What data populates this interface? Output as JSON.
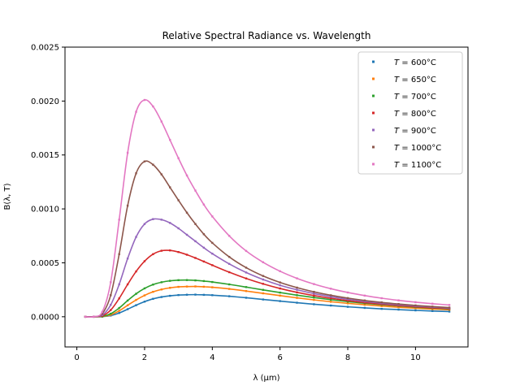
{
  "chart_data": {
    "type": "line",
    "title": "Relative Spectral Radiance vs. Wavelength",
    "xlabel": "λ (μm)",
    "ylabel": "B(λ, T)",
    "xlim": [
      -0.35,
      11.55
    ],
    "ylim": [
      -0.00028,
      0.0025
    ],
    "xticks": [
      0,
      2,
      4,
      6,
      8,
      10
    ],
    "xtick_labels": [
      "0",
      "2",
      "4",
      "6",
      "8",
      "10"
    ],
    "yticks": [
      0.0,
      0.0005,
      0.001,
      0.0015,
      0.002,
      0.0025
    ],
    "ytick_labels": [
      "0.0000",
      "0.0005",
      "0.0010",
      "0.0015",
      "0.0020",
      "0.0025"
    ],
    "grid": false,
    "legend_position": "top-right",
    "x": [
      0.25,
      0.5,
      0.75,
      1.0,
      1.25,
      1.5,
      1.75,
      2.0,
      2.25,
      2.5,
      2.75,
      3.0,
      3.25,
      3.5,
      3.75,
      4.0,
      4.5,
      5.0,
      5.5,
      6.0,
      6.5,
      7.0,
      7.5,
      8.0,
      8.5,
      9.0,
      9.5,
      10.0,
      10.5,
      11.0
    ],
    "series": [
      {
        "name": "T = 600°C",
        "label_prefix": "T",
        "label_value": " = 600°C",
        "color": "#1f77b4",
        "values": [
          0.0,
          0.0,
          1e-06,
          1.1e-05,
          3.5e-05,
          7e-05,
          0.000107,
          0.00014,
          0.000166,
          0.000183,
          0.000194,
          0.000201,
          0.000204,
          0.000205,
          0.000203,
          0.0002,
          0.00019,
          0.000176,
          0.00016,
          0.000145,
          0.00013,
          0.000116,
          0.000104,
          9.2e-05,
          8.2e-05,
          7.3e-05,
          6.6e-05,
          5.9e-05,
          5.3e-05,
          4.8e-05
        ]
      },
      {
        "name": "T = 650°C",
        "label_prefix": "T",
        "label_value": " = 650°C",
        "color": "#ff7f0e",
        "values": [
          0.0,
          0.0,
          2e-06,
          1.8e-05,
          5.5e-05,
          0.000106,
          0.000156,
          0.000198,
          0.000231,
          0.000253,
          0.000268,
          0.000277,
          0.00028,
          0.000281,
          0.000278,
          0.000273,
          0.000258,
          0.000238,
          0.000217,
          0.000196,
          0.000175,
          0.000156,
          0.000139,
          0.000124,
          0.000111,
          9.9e-05,
          8.8e-05,
          7.9e-05,
          7.1e-05,
          6.4e-05
        ]
      },
      {
        "name": "T = 700°C",
        "label_prefix": "T",
        "label_value": " = 700°C",
        "color": "#2ca02c",
        "values": [
          0.0,
          0.0,
          3e-06,
          2.8e-05,
          8.1e-05,
          0.00015,
          0.000213,
          0.000263,
          0.000298,
          0.00032,
          0.000333,
          0.000339,
          0.00034,
          0.000337,
          0.000331,
          0.000322,
          0.0003,
          0.000275,
          0.000249,
          0.000224,
          0.0002,
          0.000178,
          0.000158,
          0.00014,
          0.000125,
          0.000112,
          0.0001,
          8.9e-05,
          8e-05,
          7.2e-05
        ]
      },
      {
        "name": "T = 800°C",
        "label_prefix": "T",
        "label_value": " = 800°C",
        "color": "#d62728",
        "values": [
          0.0,
          0.0,
          8e-06,
          6.2e-05,
          0.00017,
          0.0003,
          0.00042,
          0.000515,
          0.00058,
          0.000612,
          0.000615,
          0.0006,
          0.000575,
          0.000545,
          0.000512,
          0.000478,
          0.000413,
          0.000355,
          0.000305,
          0.000262,
          0.000226,
          0.000196,
          0.000171,
          0.00015,
          0.000132,
          0.000117,
          0.000104,
          9.3e-05,
          8.3e-05,
          7.5e-05
        ]
      },
      {
        "name": "T = 900°C",
        "label_prefix": "T",
        "label_value": " = 900°C",
        "color": "#9467bd",
        "values": [
          0.0,
          0.0,
          1.5e-05,
          0.00011,
          0.0003,
          0.00054,
          0.00074,
          0.00086,
          0.000905,
          0.0009,
          0.00087,
          0.00082,
          0.00076,
          0.0007,
          0.00064,
          0.000585,
          0.00049,
          0.00041,
          0.000345,
          0.000292,
          0.00025,
          0.000215,
          0.000186,
          0.000162,
          0.000142,
          0.000125,
          0.000111,
          9.9e-05,
          8.9e-05,
          8e-05
        ]
      },
      {
        "name": "T = 1000°C",
        "label_prefix": "T",
        "label_value": " = 1000°C",
        "color": "#8c564b",
        "values": [
          0.0,
          0.0,
          2.8e-05,
          0.0002,
          0.00058,
          0.00103,
          0.00133,
          0.00144,
          0.00141,
          0.00132,
          0.0012,
          0.00108,
          0.000965,
          0.00086,
          0.000765,
          0.000685,
          0.000555,
          0.000455,
          0.000378,
          0.000318,
          0.00027,
          0.000231,
          0.000199,
          0.000173,
          0.000151,
          0.000133,
          0.000118,
          0.000105,
          9.4e-05,
          8.5e-05
        ]
      },
      {
        "name": "T = 1100°C",
        "label_prefix": "T",
        "label_value": " = 1100°C",
        "color": "#e377c2",
        "values": [
          0.0,
          0.0,
          4.5e-05,
          0.00032,
          0.0009,
          0.00152,
          0.0019,
          0.00201,
          0.00195,
          0.00181,
          0.00164,
          0.00147,
          0.00131,
          0.00117,
          0.00104,
          0.00093,
          0.00075,
          0.00061,
          0.000505,
          0.000422,
          0.000356,
          0.000303,
          0.00026,
          0.000225,
          0.000196,
          0.000172,
          0.000152,
          0.000135,
          0.000121,
          0.000109
        ]
      }
    ]
  }
}
